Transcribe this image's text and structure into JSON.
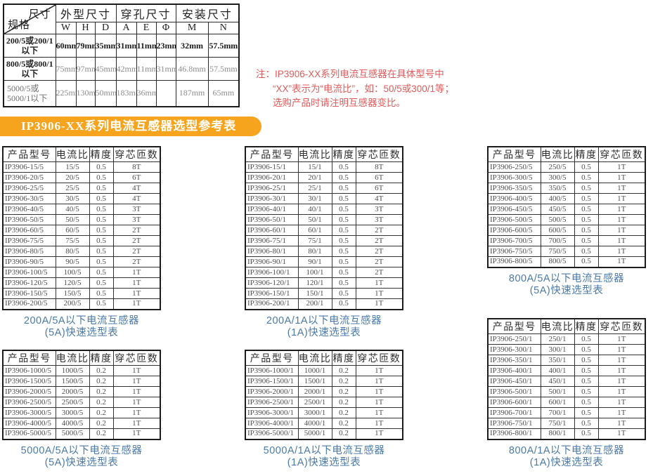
{
  "accent_colors": {
    "banner_orange": "#f6a41e",
    "note_red": "#e25a5a",
    "caption_blue": "#4a7aa9"
  },
  "dimension_table": {
    "corner_top": "尺寸",
    "corner_bottom": "规格",
    "groups": [
      "外型尺寸",
      "穿孔尺寸",
      "安装尺寸"
    ],
    "columns": [
      "W",
      "H",
      "D",
      "A",
      "E",
      "Φ",
      "M",
      "N"
    ],
    "rows": [
      {
        "label": "200/5或200/1 以下",
        "values": [
          "60mm",
          "79mm",
          "35mm",
          "31mm",
          "11mm",
          "23mm",
          "32mm",
          "57.5mm"
        ]
      },
      {
        "label": "800/5或800/1 以下",
        "values": [
          "75mm",
          "97mm",
          "45mm",
          "42mm",
          "11mm",
          "31mm",
          "46.8mm",
          "57.5mm"
        ]
      },
      {
        "label": "5000/5或 5000/1以下",
        "values": [
          "225mm",
          "130mm",
          "50mm",
          "183mm",
          "36mm",
          "",
          "187mm",
          "65mm"
        ]
      }
    ]
  },
  "note": {
    "lines": [
      "注：IP3906-XX系列电流互感器在具体型号中",
      "“XX”表示为“电流比”，如：50/5或300/1等；",
      "选购产品时请注明互感器变比。"
    ]
  },
  "banner": {
    "title": "IP3906-XX系列电流互感器选型参考表"
  },
  "selection_tables": [
    {
      "headers": [
        "产品型号",
        "电流比",
        "精度",
        "穿芯匝数"
      ],
      "rows": [
        [
          "IP3906-15/5",
          "15/5",
          "0.5",
          "8T"
        ],
        [
          "IP3906-20/5",
          "20/5",
          "0.5",
          "6T"
        ],
        [
          "IP3906-25/5",
          "25/5",
          "0.5",
          "4T"
        ],
        [
          "IP3906-30/5",
          "30/5",
          "0.5",
          "4T"
        ],
        [
          "IP3906-40/5",
          "40/5",
          "0.5",
          "3T"
        ],
        [
          "IP3906-50/5",
          "50/5",
          "0.5",
          "3T"
        ],
        [
          "IP3906-60/5",
          "60/5",
          "0.5",
          "2T"
        ],
        [
          "IP3906-75/5",
          "75/5",
          "0.5",
          "2T"
        ],
        [
          "IP3906-80/5",
          "80/5",
          "0.5",
          "2T"
        ],
        [
          "IP3906-90/5",
          "90/5",
          "0.5",
          "2T"
        ],
        [
          "IP3906-100/5",
          "100/5",
          "0.5",
          "1T"
        ],
        [
          "IP3906-120/5",
          "120/5",
          "0.5",
          "1T"
        ],
        [
          "IP3906-150/5",
          "150/5",
          "0.5",
          "1T"
        ],
        [
          "IP3906-200/5",
          "200/5",
          "0.5",
          "1T"
        ]
      ],
      "caption": [
        "200A/5A以下电流互感器",
        "(5A)快速选型表"
      ]
    },
    {
      "headers": [
        "产品型号",
        "电流比",
        "精度",
        "穿芯匝数"
      ],
      "rows": [
        [
          "IP3906-15/1",
          "15/1",
          "0.5",
          "8T"
        ],
        [
          "IP3906-20/1",
          "20/1",
          "0.5",
          "6T"
        ],
        [
          "IP3906-25/1",
          "25/1",
          "0.5",
          "6T"
        ],
        [
          "IP3906-30/1",
          "30/1",
          "0.5",
          "4T"
        ],
        [
          "IP3906-40/1",
          "40/1",
          "0.5",
          "3T"
        ],
        [
          "IP3906-50/1",
          "50/1",
          "0.5",
          "3T"
        ],
        [
          "IP3906-60/1",
          "60/1",
          "0.5",
          "2T"
        ],
        [
          "IP3906-75/1",
          "75/1",
          "0.5",
          "2T"
        ],
        [
          "IP3906-80/1",
          "80/1",
          "0.5",
          "2T"
        ],
        [
          "IP3906-90/1",
          "90/1",
          "0.5",
          "2T"
        ],
        [
          "IP3906-100/1",
          "100/1",
          "0.5",
          "2T"
        ],
        [
          "IP3906-120/1",
          "120/1",
          "0.5",
          "1T"
        ],
        [
          "IP3906-150/1",
          "150/1",
          "0.5",
          "1T"
        ],
        [
          "IP3906-200/1",
          "200/1",
          "0.5",
          "1T"
        ]
      ],
      "caption": [
        "200A/1A以下电流互感器",
        "(1A)快速选型表"
      ]
    },
    {
      "headers": [
        "产品型号",
        "电流比",
        "精度",
        "穿芯匝数"
      ],
      "rows": [
        [
          "IP3906-250/5",
          "250/5",
          "0.5",
          "1T"
        ],
        [
          "IP3906-300/5",
          "300/5",
          "0.5",
          "1T"
        ],
        [
          "IP3906-350/5",
          "350/5",
          "0.5",
          "1T"
        ],
        [
          "IP3906-400/5",
          "400/5",
          "0.5",
          "1T"
        ],
        [
          "IP3906-450/5",
          "450/5",
          "0.5",
          "1T"
        ],
        [
          "IP3906-500/5",
          "500/5",
          "0.5",
          "1T"
        ],
        [
          "IP3906-600/5",
          "600/5",
          "0.5",
          "1T"
        ],
        [
          "IP3906-700/5",
          "700/5",
          "0.5",
          "1T"
        ],
        [
          "IP3906-750/5",
          "750/5",
          "0.5",
          "1T"
        ],
        [
          "IP3906-800/5",
          "800/5",
          "0.5",
          "1T"
        ]
      ],
      "caption": [
        "800A/5A以下电流互感器",
        "(5A)快速选型表"
      ]
    },
    {
      "headers": [
        "产品型号",
        "电流比",
        "精度",
        "穿芯匝数"
      ],
      "rows": [
        [
          "IP3906-1000/5",
          "1000/5",
          "0.2",
          "1T"
        ],
        [
          "IP3906-1500/5",
          "1500/5",
          "0.2",
          "1T"
        ],
        [
          "IP3906-2000/5",
          "2000/5",
          "0.2",
          "1T"
        ],
        [
          "IP3906-2500/5",
          "2500/5",
          "0.2",
          "1T"
        ],
        [
          "IP3906-3000/5",
          "3000/5",
          "0.2",
          "1T"
        ],
        [
          "IP3906-4000/5",
          "4000/5",
          "0.2",
          "1T"
        ],
        [
          "IP3906-5000/5",
          "5000/5",
          "0.2",
          "1T"
        ]
      ],
      "caption": [
        "5000A/5A以下电流互感器",
        "(5A)快速选型表"
      ]
    },
    {
      "headers": [
        "产品型号",
        "电流比",
        "精度",
        "穿芯匝数"
      ],
      "rows": [
        [
          "IP3906-1000/1",
          "1000/1",
          "0.2",
          "1T"
        ],
        [
          "IP3906-1500/1",
          "1500/1",
          "0.2",
          "1T"
        ],
        [
          "IP3906-2000/1",
          "2000/1",
          "0.2",
          "1T"
        ],
        [
          "IP3906-2500/1",
          "2500/1",
          "0.2",
          "1T"
        ],
        [
          "IP3906-3000/1",
          "3000/1",
          "0.2",
          "1T"
        ],
        [
          "IP3906-4000/1",
          "4000/1",
          "0.2",
          "1T"
        ],
        [
          "IP3906-5000/1",
          "5000/1",
          "0.2",
          "1T"
        ]
      ],
      "caption": [
        "5000A/1A以下电流互感器",
        "(1A)快速选型表"
      ]
    },
    {
      "headers": [
        "产品型号",
        "电流比",
        "精度",
        "穿芯匝数"
      ],
      "rows": [
        [
          "IP3906-250/1",
          "250/1",
          "0.5",
          "1T"
        ],
        [
          "IP3906-300/1",
          "300/1",
          "0.5",
          "1T"
        ],
        [
          "IP3906-350/1",
          "350/1",
          "0.5",
          "1T"
        ],
        [
          "IP3906-400/1",
          "400/1",
          "0.5",
          "1T"
        ],
        [
          "IP3906-450/1",
          "450/1",
          "0.5",
          "1T"
        ],
        [
          "IP3906-500/1",
          "500/1",
          "0.5",
          "1T"
        ],
        [
          "IP3906-600/1",
          "600/1",
          "0.5",
          "1T"
        ],
        [
          "IP3906-700/1",
          "700/1",
          "0.5",
          "1T"
        ],
        [
          "IP3906-750/1",
          "750/1",
          "0.5",
          "1T"
        ],
        [
          "IP3906-800/1",
          "800/1",
          "0.5",
          "1T"
        ]
      ],
      "caption": [
        "800A/1A以下电流互感器",
        "(1A)快速选型表"
      ]
    }
  ]
}
